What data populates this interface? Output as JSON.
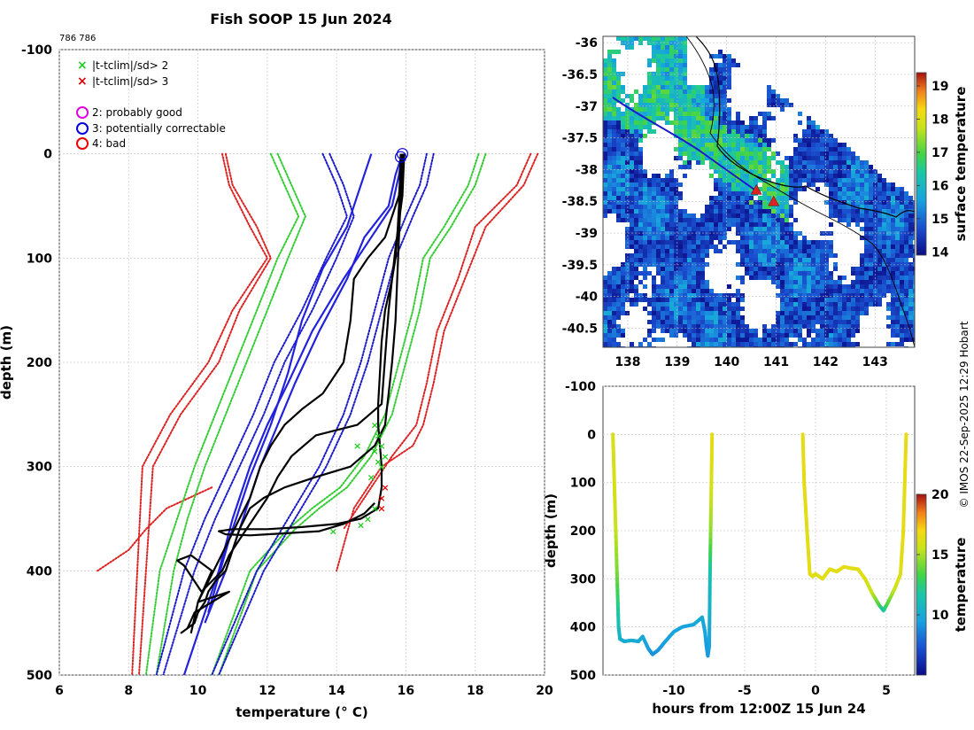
{
  "page": {
    "title": "Fish SOOP 15 Jun 2024",
    "id_label": "786 786",
    "credit": "© IMOS 22-Sep-2025 12:29 Hobart"
  },
  "legend": {
    "items": [
      {
        "symbol": "x",
        "color": "#22cc22",
        "label": "|t-tclim|/sd> 2"
      },
      {
        "symbol": "x",
        "color": "#dd0000",
        "label": "|t-tclim|/sd> 3"
      },
      {
        "symbol": "o",
        "color": "#dd00dd",
        "label": "2: probably good"
      },
      {
        "symbol": "o",
        "color": "#0000dd",
        "label": "3: potentially correctable"
      },
      {
        "symbol": "o",
        "color": "#ee0000",
        "label": "4: bad"
      }
    ]
  },
  "colors": {
    "clim3": "#dd2222",
    "clim2": "#33cc33",
    "clim1": "#1a1acc",
    "profile_blue": "#2222dd",
    "profile_black": "#000000"
  },
  "chart_data": [
    {
      "type": "line",
      "title": "Fish SOOP 15 Jun 2024",
      "xlabel": "temperature (° C)",
      "ylabel": "depth (m)",
      "xlim": [
        6,
        20
      ],
      "ylim": [
        -100,
        500
      ],
      "xticks": [
        6,
        8,
        10,
        12,
        14,
        16,
        18,
        20
      ],
      "yticks": [
        -100,
        0,
        100,
        200,
        300,
        400,
        500
      ],
      "grid": true,
      "series": [
        {
          "name": "climatology +/-3sd",
          "style": "dotted",
          "color": "#dd2222",
          "x": [
            10.8,
            11.0,
            11.7,
            12.1,
            11.2,
            10.6,
            9.5,
            8.7,
            8.3
          ],
          "y": [
            0,
            30,
            70,
            100,
            150,
            200,
            250,
            300,
            500
          ]
        },
        {
          "name": "climatology +/-3sd",
          "style": "dotted",
          "color": "#dd2222",
          "x": [
            10.7,
            10.9,
            11.5,
            12.0,
            11.0,
            10.3,
            9.2,
            8.4,
            8.1
          ],
          "y": [
            0,
            30,
            70,
            100,
            150,
            200,
            250,
            300,
            500
          ]
        },
        {
          "name": "climatology -3sd lower",
          "style": "dotted",
          "color": "#dd2222",
          "x": [
            10.4,
            9.1,
            8.5,
            8.0,
            7.1
          ],
          "y": [
            320,
            340,
            360,
            380,
            400
          ]
        },
        {
          "name": "climatology +3sd",
          "style": "dotted",
          "color": "#dd2222",
          "x": [
            19.8,
            19.4,
            18.3,
            17.7,
            17.1,
            16.8,
            16.5,
            16.2,
            15.3,
            14.5,
            14.0
          ],
          "y": [
            0,
            30,
            70,
            120,
            170,
            220,
            260,
            280,
            300,
            340,
            400
          ]
        },
        {
          "name": "climatology +3sd",
          "style": "dotted",
          "color": "#dd2222",
          "x": [
            19.6,
            19.2,
            18.0,
            17.5,
            16.9,
            16.6,
            16.3,
            15.6,
            15.0,
            14.2
          ],
          "y": [
            0,
            30,
            70,
            120,
            170,
            220,
            260,
            290,
            320,
            360
          ]
        },
        {
          "name": "climatology -2sd",
          "style": "dotted",
          "color": "#33cc33",
          "x": [
            12.3,
            12.7,
            13.1,
            12.6,
            12.0,
            11.4,
            10.8,
            10.2,
            9.7,
            9.3,
            8.8
          ],
          "y": [
            0,
            30,
            60,
            100,
            150,
            200,
            250,
            300,
            350,
            400,
            500
          ]
        },
        {
          "name": "climatology -2sd",
          "style": "dotted",
          "color": "#33cc33",
          "x": [
            12.1,
            12.5,
            12.9,
            12.3,
            11.7,
            11.1,
            10.5,
            9.9,
            9.4,
            8.9,
            8.5
          ],
          "y": [
            0,
            30,
            60,
            100,
            150,
            200,
            250,
            300,
            350,
            400,
            500
          ]
        },
        {
          "name": "climatology +2sd",
          "style": "dotted",
          "color": "#33cc33",
          "x": [
            18.3,
            18.0,
            17.3,
            16.7,
            16.4,
            16.0,
            15.6,
            15.0,
            14.3,
            13.5,
            12.8,
            11.7,
            10.6
          ],
          "y": [
            0,
            30,
            70,
            100,
            150,
            200,
            250,
            290,
            320,
            340,
            360,
            400,
            500
          ]
        },
        {
          "name": "climatology +2sd",
          "style": "dotted",
          "color": "#33cc33",
          "x": [
            18.1,
            17.8,
            17.1,
            16.5,
            16.2,
            15.8,
            15.4,
            14.8,
            14.1,
            13.3,
            12.6,
            11.5,
            10.4
          ],
          "y": [
            0,
            30,
            70,
            100,
            150,
            200,
            250,
            290,
            320,
            340,
            360,
            400,
            500
          ]
        },
        {
          "name": "climatology -1sd",
          "style": "dotted",
          "color": "#1a1acc",
          "x": [
            13.8,
            14.2,
            14.5,
            14.0,
            13.3,
            12.5,
            11.9,
            11.2,
            10.5,
            9.9,
            9.0
          ],
          "y": [
            0,
            30,
            60,
            100,
            150,
            200,
            250,
            300,
            350,
            400,
            500
          ]
        },
        {
          "name": "climatology -1sd",
          "style": "dotted",
          "color": "#1a1acc",
          "x": [
            13.6,
            14.0,
            14.3,
            13.7,
            13.0,
            12.2,
            11.6,
            10.9,
            10.2,
            9.6,
            8.8
          ],
          "y": [
            0,
            30,
            60,
            100,
            150,
            200,
            250,
            300,
            350,
            400,
            500
          ]
        },
        {
          "name": "climatology +1sd",
          "style": "dotted",
          "color": "#1a1acc",
          "x": [
            16.8,
            16.6,
            16.2,
            15.7,
            15.3,
            14.9,
            14.4,
            13.7,
            12.8,
            11.9,
            10.6
          ],
          "y": [
            0,
            30,
            60,
            100,
            150,
            200,
            250,
            300,
            350,
            400,
            500
          ]
        },
        {
          "name": "climatology +1sd",
          "style": "dotted",
          "color": "#1a1acc",
          "x": [
            16.6,
            16.4,
            16.0,
            15.5,
            15.1,
            14.7,
            14.2,
            13.5,
            12.6,
            11.7,
            10.4
          ],
          "y": [
            0,
            30,
            60,
            100,
            150,
            200,
            250,
            300,
            350,
            400,
            500
          ]
        },
        {
          "name": "blue profile",
          "style": "solid",
          "color": "#2222dd",
          "x": [
            15.9,
            15.8,
            15.6,
            15.0,
            14.2,
            13.3,
            12.6,
            12.0,
            11.5,
            11.0,
            10.6,
            10.1,
            9.6
          ],
          "y": [
            0,
            20,
            50,
            80,
            120,
            170,
            220,
            260,
            300,
            350,
            400,
            450,
            500
          ]
        },
        {
          "name": "blue profile",
          "style": "solid",
          "color": "#2222dd",
          "x": [
            15.9,
            15.7,
            15.5,
            14.8,
            14.3,
            13.5,
            12.8,
            12.3,
            11.8,
            11.3,
            10.8,
            10.2
          ],
          "y": [
            0,
            20,
            50,
            80,
            120,
            170,
            220,
            260,
            300,
            350,
            400,
            450
          ]
        },
        {
          "name": "blue profile",
          "style": "solid",
          "color": "#2222dd",
          "x": [
            15.0,
            14.6,
            14.3,
            13.6,
            13.0,
            12.6,
            12.1,
            11.5,
            10.9,
            10.3
          ],
          "y": [
            0,
            40,
            70,
            110,
            160,
            210,
            260,
            310,
            370,
            440
          ]
        },
        {
          "name": "black profile",
          "style": "solid",
          "color": "#000000",
          "x": [
            15.85,
            15.8,
            15.75,
            15.7,
            15.6,
            15.4,
            15.3,
            15.25,
            15.2,
            15.2,
            15.25,
            15.3,
            15.3,
            15.2,
            14.7,
            14.0,
            13.0,
            12.0,
            11.0,
            10.6,
            10.8,
            11.5,
            12.0,
            12.5,
            13.5,
            14.2,
            14.8,
            15.1
          ],
          "y": [
            0,
            50,
            80,
            100,
            120,
            150,
            180,
            210,
            240,
            260,
            280,
            300,
            320,
            340,
            350,
            355,
            358,
            360,
            360,
            362,
            365,
            366,
            365,
            364,
            362,
            355,
            345,
            335
          ]
        },
        {
          "name": "black profile",
          "style": "solid",
          "color": "#000000",
          "x": [
            15.9,
            15.8,
            15.4,
            14.9,
            14.5,
            14.4,
            14.2,
            13.6,
            13.0,
            12.5,
            12.1,
            11.8,
            11.5,
            11.2,
            10.9,
            10.6,
            10.3,
            10.0,
            9.8
          ],
          "y": [
            0,
            40,
            80,
            100,
            120,
            160,
            200,
            230,
            245,
            260,
            280,
            300,
            330,
            350,
            370,
            390,
            410,
            430,
            460
          ]
        },
        {
          "name": "black profile",
          "style": "solid",
          "color": "#000000",
          "x": [
            15.95,
            15.9,
            15.7,
            15.5,
            15.3,
            14.6,
            13.4,
            12.7,
            12.3,
            12.0,
            11.6,
            11.2,
            10.9,
            10.7,
            10.4,
            10.1,
            9.6,
            9.4,
            9.8,
            10.4,
            10.0,
            10.9,
            9.9,
            9.7
          ],
          "y": [
            0,
            40,
            90,
            150,
            240,
            260,
            270,
            290,
            310,
            330,
            350,
            370,
            385,
            400,
            410,
            420,
            395,
            390,
            385,
            400,
            430,
            420,
            440,
            455
          ]
        },
        {
          "name": "black profile",
          "style": "solid",
          "color": "#000000",
          "x": [
            15.9,
            15.85,
            15.8,
            15.75,
            15.7,
            15.6,
            15.5,
            15.4,
            15.1,
            14.4,
            13.4,
            12.5,
            11.9,
            11.5,
            11.2,
            11.0,
            10.8,
            10.5,
            10.3,
            10.2,
            10.0,
            9.9,
            9.7,
            9.5
          ],
          "y": [
            0,
            40,
            80,
            120,
            160,
            200,
            230,
            260,
            280,
            300,
            310,
            320,
            330,
            340,
            360,
            380,
            400,
            410,
            420,
            430,
            440,
            450,
            455,
            460
          ]
        }
      ],
      "flagged_2sd": [
        {
          "x": 15.1,
          "y": 260
        },
        {
          "x": 15.2,
          "y": 270
        },
        {
          "x": 15.3,
          "y": 280
        },
        {
          "x": 15.1,
          "y": 285
        },
        {
          "x": 15.4,
          "y": 290
        },
        {
          "x": 15.2,
          "y": 295
        },
        {
          "x": 15.3,
          "y": 300
        },
        {
          "x": 15.0,
          "y": 310
        },
        {
          "x": 14.6,
          "y": 280
        },
        {
          "x": 15.1,
          "y": 340
        },
        {
          "x": 14.9,
          "y": 350
        },
        {
          "x": 14.7,
          "y": 356
        },
        {
          "x": 13.9,
          "y": 362
        }
      ],
      "flagged_3sd": [
        {
          "x": 15.4,
          "y": 320
        },
        {
          "x": 15.3,
          "y": 330
        },
        {
          "x": 15.3,
          "y": 340
        }
      ],
      "flag_circles": [
        {
          "x": 15.9,
          "y": 0,
          "color": "#0000dd"
        },
        {
          "x": 15.85,
          "y": 3,
          "color": "#0000dd"
        }
      ]
    },
    {
      "type": "heatmap",
      "title": "",
      "colorbar_label": "surface temperature",
      "xlim": [
        137.5,
        143.8
      ],
      "ylim": [
        -40.8,
        -35.9
      ],
      "xticks": [
        138,
        139,
        140,
        141,
        142,
        143
      ],
      "yticks": [
        -36,
        -36.5,
        -37,
        -37.5,
        -38,
        -38.5,
        -39,
        -39.5,
        -40,
        -40.5
      ],
      "colorbar_ticks": [
        14,
        15,
        16,
        17,
        18,
        19
      ],
      "colorbar_range": [
        13.9,
        19.4
      ],
      "track": [
        {
          "lon": 140.3,
          "lat": -38.1
        },
        {
          "lon": 140.6,
          "lat": -38.3
        },
        {
          "lon": 140.9,
          "lat": -38.5
        }
      ],
      "markers": [
        {
          "lon": 140.6,
          "lat": -38.32,
          "color": "#dd2222"
        },
        {
          "lon": 140.95,
          "lat": -38.5,
          "color": "#dd2222"
        }
      ]
    },
    {
      "type": "scatter",
      "xlabel": "hours from 12:00Z 15 Jun 24",
      "ylabel": "depth (m)",
      "colorbar_label": "temperature",
      "xlim": [
        -15,
        7
      ],
      "ylim": [
        -100,
        500
      ],
      "xticks": [
        -10,
        -5,
        0,
        5
      ],
      "yticks": [
        -100,
        0,
        100,
        200,
        300,
        400,
        500
      ],
      "colorbar_ticks": [
        10,
        15,
        20
      ],
      "colorbar_range": [
        5,
        20
      ],
      "series": [
        {
          "name": "dive 1",
          "x": [
            -14.3,
            -14.2,
            -14.1,
            -14.0,
            -13.9,
            -13.8,
            -13.5,
            -13.0,
            -12.5,
            -12.2,
            -11.8,
            -11.5,
            -11.1,
            -10.6,
            -10.0,
            -9.4,
            -8.6,
            -8.0,
            -7.8,
            -7.7,
            -7.6,
            -7.5
          ],
          "y": [
            0,
            100,
            200,
            300,
            400,
            425,
            430,
            428,
            430,
            420,
            445,
            457,
            448,
            430,
            410,
            400,
            395,
            380,
            410,
            440,
            460,
            440
          ],
          "t": [
            16,
            16,
            15.5,
            14,
            11,
            10.5,
            10,
            10.2,
            10,
            10,
            9.5,
            9,
            9.2,
            9.5,
            9.6,
            9.6,
            9.8,
            10,
            9.6,
            9.4,
            9.2,
            9.5
          ]
        },
        {
          "name": "dive 1 ascent",
          "x": [
            -7.5,
            -7.45,
            -7.4,
            -7.35,
            -7.3
          ],
          "y": [
            440,
            300,
            200,
            100,
            0
          ],
          "t": [
            9.5,
            11,
            14.5,
            16,
            16.5
          ]
        },
        {
          "name": "dive 2",
          "x": [
            -0.9,
            -0.8,
            -0.6,
            -0.4,
            -0.2,
            0.0,
            0.5,
            1.0,
            1.5,
            2.0,
            2.5,
            3.0,
            3.5,
            4.0,
            4.5,
            4.8,
            5.1,
            5.6,
            6.0,
            6.2,
            6.3,
            6.4
          ],
          "y": [
            0,
            100,
            200,
            290,
            295,
            290,
            300,
            280,
            285,
            275,
            278,
            280,
            300,
            330,
            355,
            366,
            350,
            320,
            290,
            200,
            100,
            0
          ],
          "t": [
            16.5,
            16.5,
            16.3,
            16.5,
            16.3,
            16.2,
            16.3,
            16.4,
            16.3,
            16.5,
            16.4,
            16.3,
            16.2,
            15.5,
            13.5,
            11.5,
            13.5,
            15.5,
            16.3,
            16.5,
            16.5,
            16.6
          ]
        }
      ]
    }
  ]
}
